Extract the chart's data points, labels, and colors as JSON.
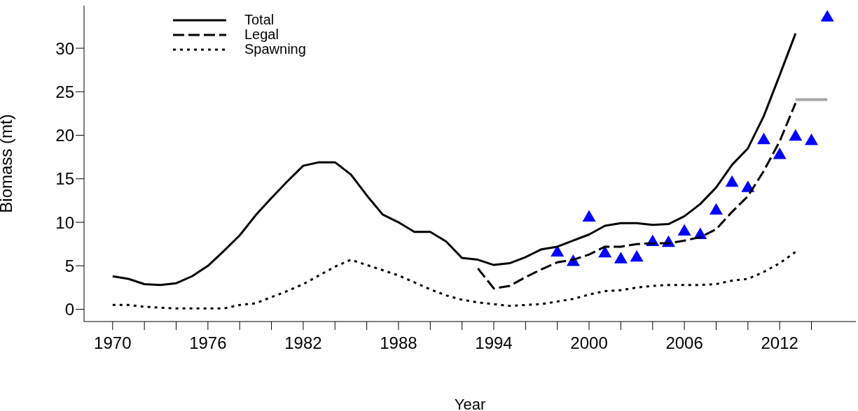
{
  "chart_data": {
    "type": "line",
    "xlabel": "Year",
    "ylabel": "Biomass (mt)",
    "xlim": [
      1968.2,
      2016.8
    ],
    "ylim": [
      -1.4,
      34.9
    ],
    "xticks": [
      1970,
      {
        "value": 1972,
        "label": null
      },
      {
        "value": 1974,
        "label": null
      },
      1976,
      {
        "value": 1978,
        "label": null
      },
      {
        "value": 1980,
        "label": null
      },
      1982,
      {
        "value": 1984,
        "label": null
      },
      {
        "value": 1986,
        "label": null
      },
      1988,
      {
        "value": 1990,
        "label": null
      },
      {
        "value": 1992,
        "label": null
      },
      1994,
      {
        "value": 1996,
        "label": null
      },
      {
        "value": 1998,
        "label": null
      },
      2000,
      {
        "value": 2002,
        "label": null
      },
      {
        "value": 2004,
        "label": null
      },
      2006,
      {
        "value": 2008,
        "label": null
      },
      {
        "value": 2010,
        "label": null
      },
      2012,
      {
        "value": 2014,
        "label": null
      }
    ],
    "yticks": [
      0,
      5,
      10,
      15,
      20,
      25,
      30
    ],
    "grid": false,
    "legend": "top left",
    "series": [
      {
        "name": "Total",
        "line_style": "solid",
        "marker": "none",
        "color": "#000000",
        "x": [
          1970,
          1971,
          1972,
          1973,
          1974,
          1975,
          1976,
          1977,
          1978,
          1979,
          1980,
          1981,
          1982,
          1983,
          1984,
          1985,
          1986,
          1987,
          1988,
          1989,
          1990,
          1991,
          1992,
          1993,
          1994,
          1995,
          1996,
          1997,
          1998,
          1999,
          2000,
          2001,
          2002,
          2003,
          2004,
          2005,
          2006,
          2007,
          2008,
          2009,
          2010,
          2011,
          2012,
          2013
        ],
        "values": [
          3.8,
          3.5,
          2.9,
          2.8,
          3.0,
          3.8,
          5.0,
          6.7,
          8.5,
          10.8,
          12.8,
          14.7,
          16.5,
          16.9,
          16.9,
          15.5,
          13.1,
          10.9,
          10.0,
          8.9,
          8.9,
          7.8,
          5.9,
          5.7,
          5.1,
          5.3,
          6.0,
          6.9,
          7.2,
          7.9,
          8.6,
          9.6,
          9.9,
          9.9,
          9.7,
          9.8,
          10.7,
          12.1,
          14.0,
          16.6,
          18.5,
          22.2,
          26.9,
          31.7
        ]
      },
      {
        "name": "Legal",
        "line_style": "dashed",
        "marker": "none",
        "color": "#000000",
        "x": [
          1993,
          1994,
          1995,
          1996,
          1997,
          1998,
          1999,
          2000,
          2001,
          2002,
          2003,
          2004,
          2005,
          2006,
          2007,
          2008,
          2009,
          2010,
          2011,
          2012,
          2013
        ],
        "values": [
          4.7,
          2.4,
          2.7,
          3.7,
          4.6,
          5.4,
          5.7,
          6.3,
          7.2,
          7.2,
          7.5,
          7.6,
          7.6,
          7.9,
          8.3,
          9.2,
          11.2,
          13.0,
          15.9,
          19.3,
          23.7
        ]
      },
      {
        "name": "Spawning",
        "line_style": "dotted",
        "marker": "none",
        "color": "#000000",
        "x": [
          1970,
          1971,
          1972,
          1973,
          1974,
          1975,
          1976,
          1977,
          1978,
          1979,
          1980,
          1981,
          1982,
          1983,
          1984,
          1985,
          1986,
          1987,
          1988,
          1989,
          1990,
          1991,
          1992,
          1993,
          1994,
          1995,
          1996,
          1997,
          1998,
          1999,
          2000,
          2001,
          2002,
          2003,
          2004,
          2005,
          2006,
          2007,
          2008,
          2009,
          2010,
          2011,
          2012,
          2013
        ],
        "values": [
          0.5,
          0.5,
          0.3,
          0.2,
          0.1,
          0.1,
          0.1,
          0.1,
          0.5,
          0.7,
          1.4,
          2.1,
          2.9,
          3.9,
          4.9,
          5.7,
          5.1,
          4.5,
          3.9,
          3.1,
          2.3,
          1.6,
          1.1,
          0.8,
          0.6,
          0.4,
          0.5,
          0.6,
          0.9,
          1.2,
          1.7,
          2.1,
          2.2,
          2.5,
          2.7,
          2.8,
          2.8,
          2.8,
          2.9,
          3.3,
          3.5,
          4.3,
          5.3,
          6.6
        ]
      },
      {
        "type": "scatter",
        "marker": "triangle",
        "color": "#0000ff",
        "x": [
          1998,
          1999,
          2000,
          2001,
          2002,
          2003,
          2004,
          2005,
          2006,
          2007,
          2008,
          2009,
          2010,
          2011,
          2012,
          2013,
          2014,
          2015
        ],
        "values": [
          6.6,
          5.5,
          10.6,
          6.5,
          5.8,
          6.0,
          7.8,
          7.7,
          9.0,
          8.6,
          11.4,
          14.6,
          14.0,
          19.5,
          17.8,
          19.9,
          19.4,
          33.6
        ]
      },
      {
        "line_style": "solid",
        "marker": "none",
        "color": "#a6a6a6",
        "x": [
          2013,
          2015
        ],
        "values": [
          24.1,
          24.1
        ]
      }
    ]
  }
}
